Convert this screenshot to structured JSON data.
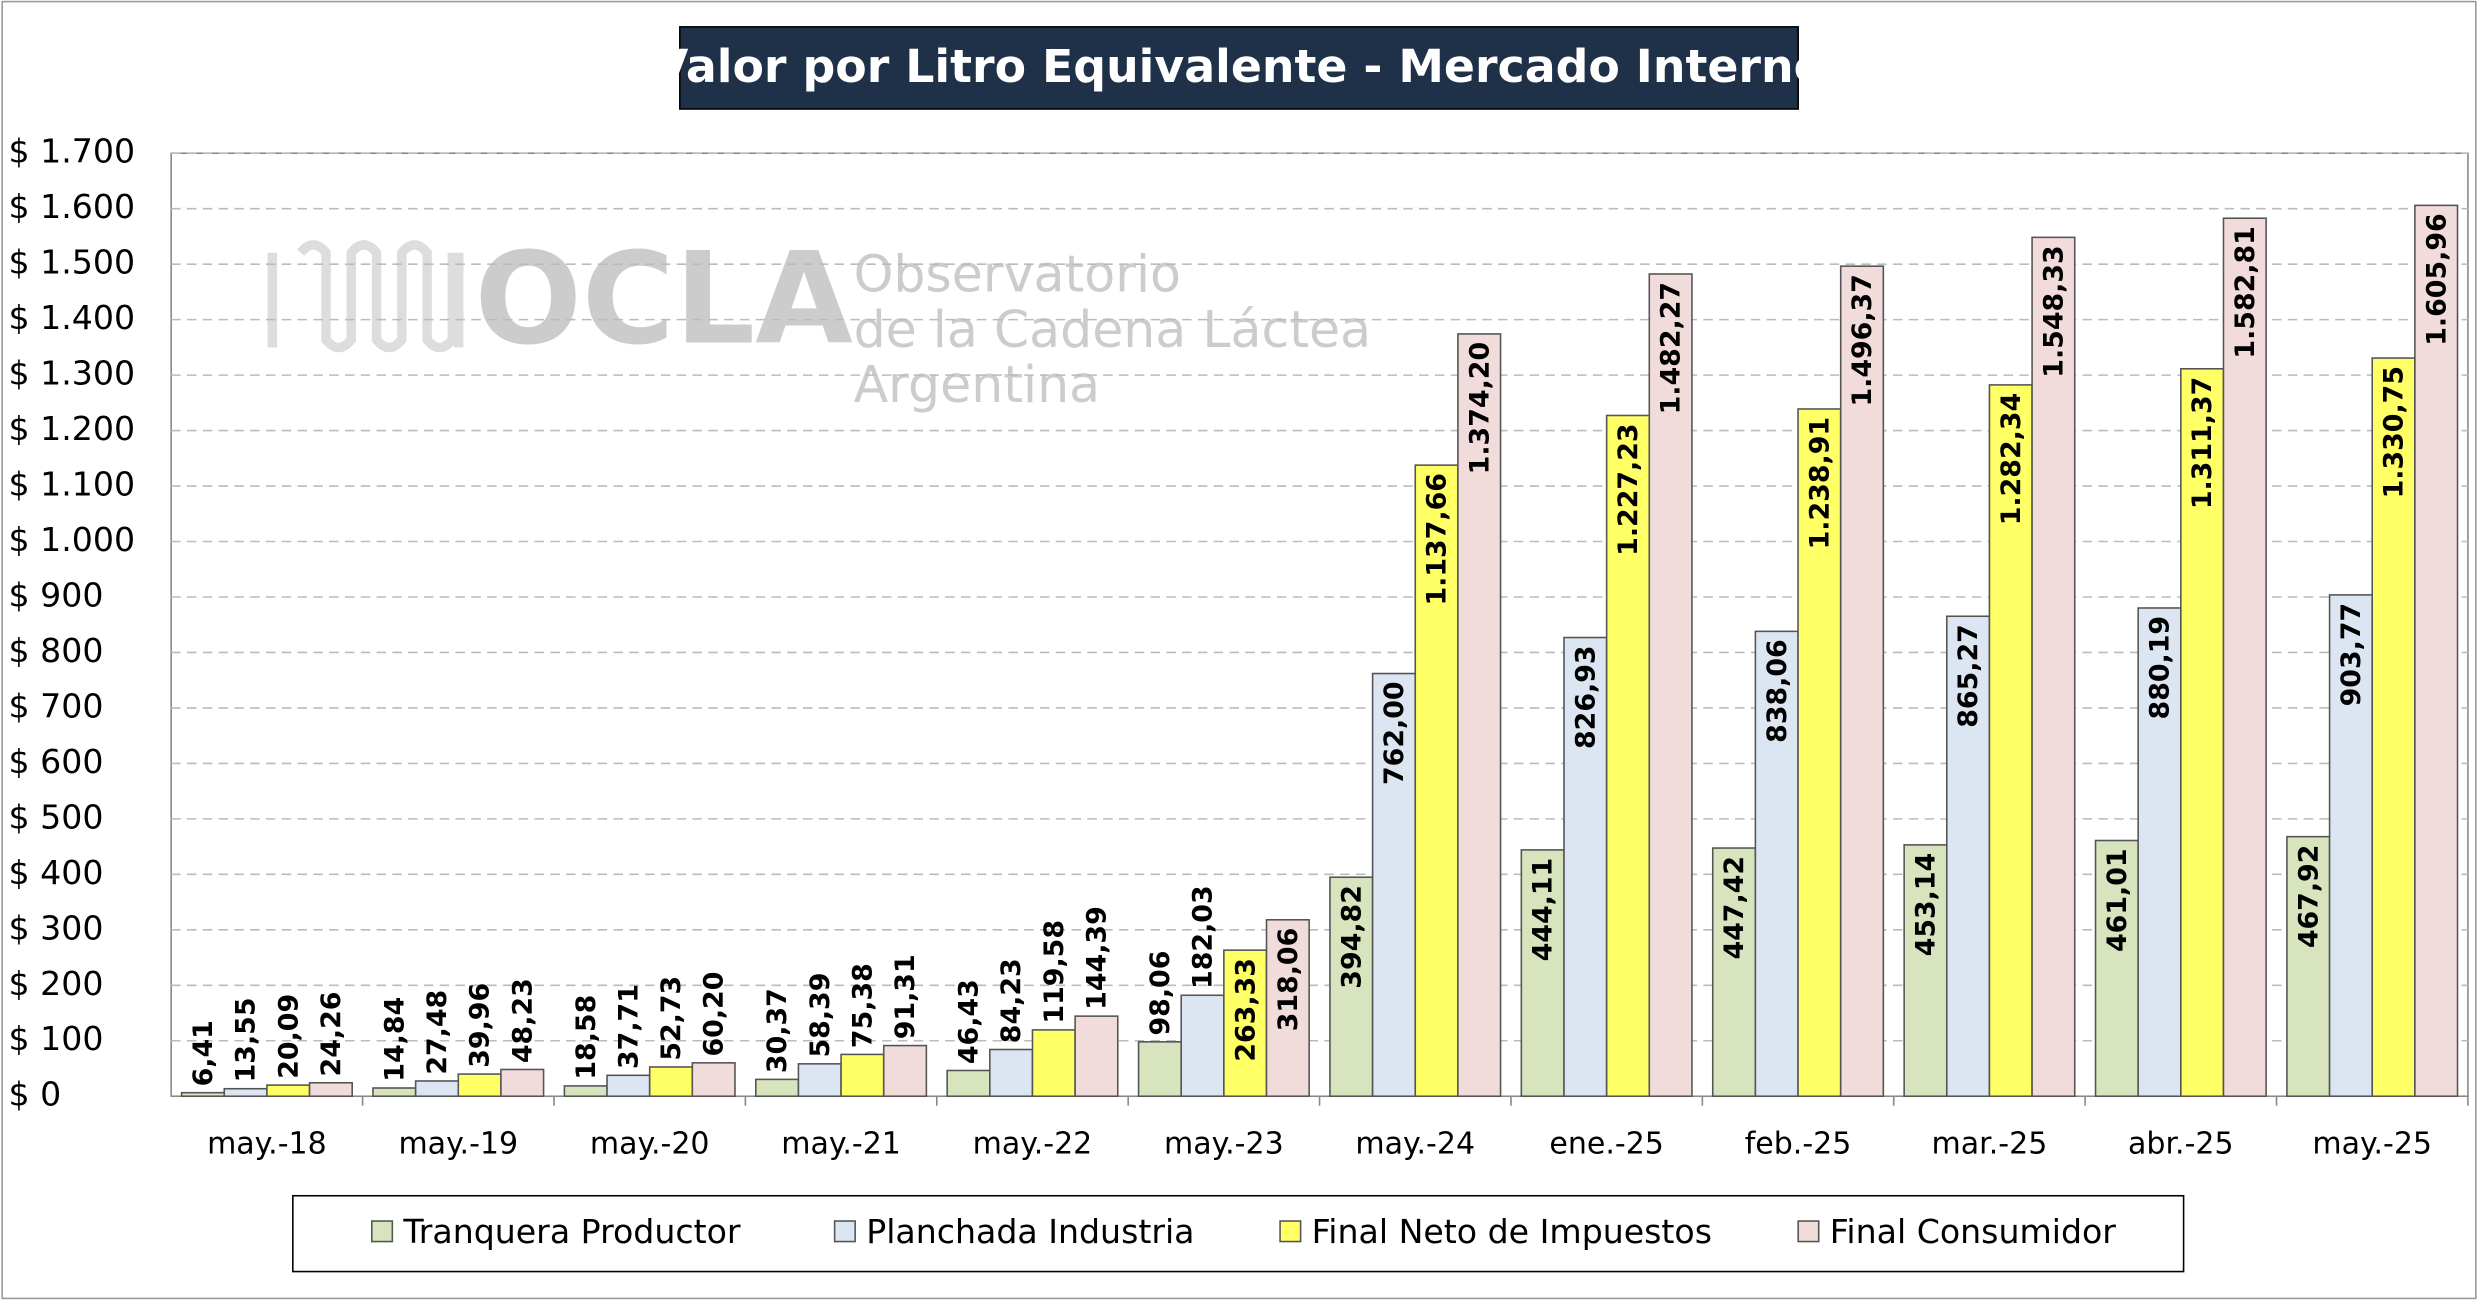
{
  "chart_data": {
    "type": "bar",
    "title": "Valor por Litro Equivalente - Mercado Interno",
    "watermark": [
      "OCLA",
      "Observatorio",
      "de la Cadena Láctea",
      "Argentina"
    ],
    "categories": [
      "may.-18",
      "may.-19",
      "may.-20",
      "may.-21",
      "may.-22",
      "may.-23",
      "may.-24",
      "ene.-25",
      "feb.-25",
      "mar.-25",
      "abr.-25",
      "may.-25"
    ],
    "series": [
      {
        "name": "Tranquera Productor",
        "color": "#d7e4bd",
        "values": [
          6.41,
          14.84,
          18.58,
          30.37,
          46.43,
          98.06,
          394.82,
          444.11,
          447.42,
          453.14,
          461.01,
          467.92
        ],
        "value_labels": [
          "6,41",
          "14,84",
          "18,58",
          "30,37",
          "46,43",
          "98,06",
          "394,82",
          "444,11",
          "447,42",
          "453,14",
          "461,01",
          "467,92"
        ]
      },
      {
        "name": "Planchada Industria",
        "color": "#dce6f2",
        "values": [
          13.55,
          27.48,
          37.71,
          58.39,
          84.23,
          182.03,
          762,
          826.93,
          838.06,
          865.27,
          880.19,
          903.77
        ],
        "value_labels": [
          "13,55",
          "27,48",
          "37,71",
          "58,39",
          "84,23",
          "182,03",
          "762,00",
          "826,93",
          "838,06",
          "865,27",
          "880,19",
          "903,77"
        ]
      },
      {
        "name": "Final Neto de Impuestos",
        "color": "#ffff66",
        "values": [
          20.09,
          39.96,
          52.73,
          75.38,
          119.58,
          263.33,
          1137.66,
          1227.23,
          1238.91,
          1282.34,
          1311.37,
          1330.75
        ],
        "value_labels": [
          "20,09",
          "39,96",
          "52,73",
          "75,38",
          "119,58",
          "263,33",
          "1.137,66",
          "1.227,23",
          "1.238,91",
          "1.282,34",
          "1.311,37",
          "1.330,75"
        ]
      },
      {
        "name": "Final Consumidor",
        "color": "#f2dcdb",
        "values": [
          24.26,
          48.23,
          60.2,
          91.31,
          144.39,
          318.06,
          1374.2,
          1482.27,
          1496.37,
          1548.33,
          1582.81,
          1605.96
        ],
        "value_labels": [
          "24,26",
          "48,23",
          "60,20",
          "91,31",
          "144,39",
          "318,06",
          "1.374,20",
          "1.482,27",
          "1.496,37",
          "1.548,33",
          "1.582,81",
          "1.605,96"
        ]
      }
    ],
    "ylim": [
      0,
      1700
    ],
    "yticks": [
      {
        "value": 0,
        "label": "$ 0"
      },
      {
        "value": 100,
        "label": "$ 100"
      },
      {
        "value": 200,
        "label": "$ 200"
      },
      {
        "value": 300,
        "label": "$ 300"
      },
      {
        "value": 400,
        "label": "$ 400"
      },
      {
        "value": 500,
        "label": "$ 500"
      },
      {
        "value": 600,
        "label": "$ 600"
      },
      {
        "value": 700,
        "label": "$ 700"
      },
      {
        "value": 800,
        "label": "$ 800"
      },
      {
        "value": 900,
        "label": "$ 900"
      },
      {
        "value": 1000,
        "label": "$ 1.000"
      },
      {
        "value": 1100,
        "label": "$ 1.100"
      },
      {
        "value": 1200,
        "label": "$ 1.200"
      },
      {
        "value": 1300,
        "label": "$ 1.300"
      },
      {
        "value": 1400,
        "label": "$ 1.400"
      },
      {
        "value": 1500,
        "label": "$ 1.500"
      },
      {
        "value": 1600,
        "label": "$ 1.600"
      },
      {
        "value": 1700,
        "label": "$ 1.700"
      }
    ],
    "grid": true,
    "legend": "bottom"
  }
}
